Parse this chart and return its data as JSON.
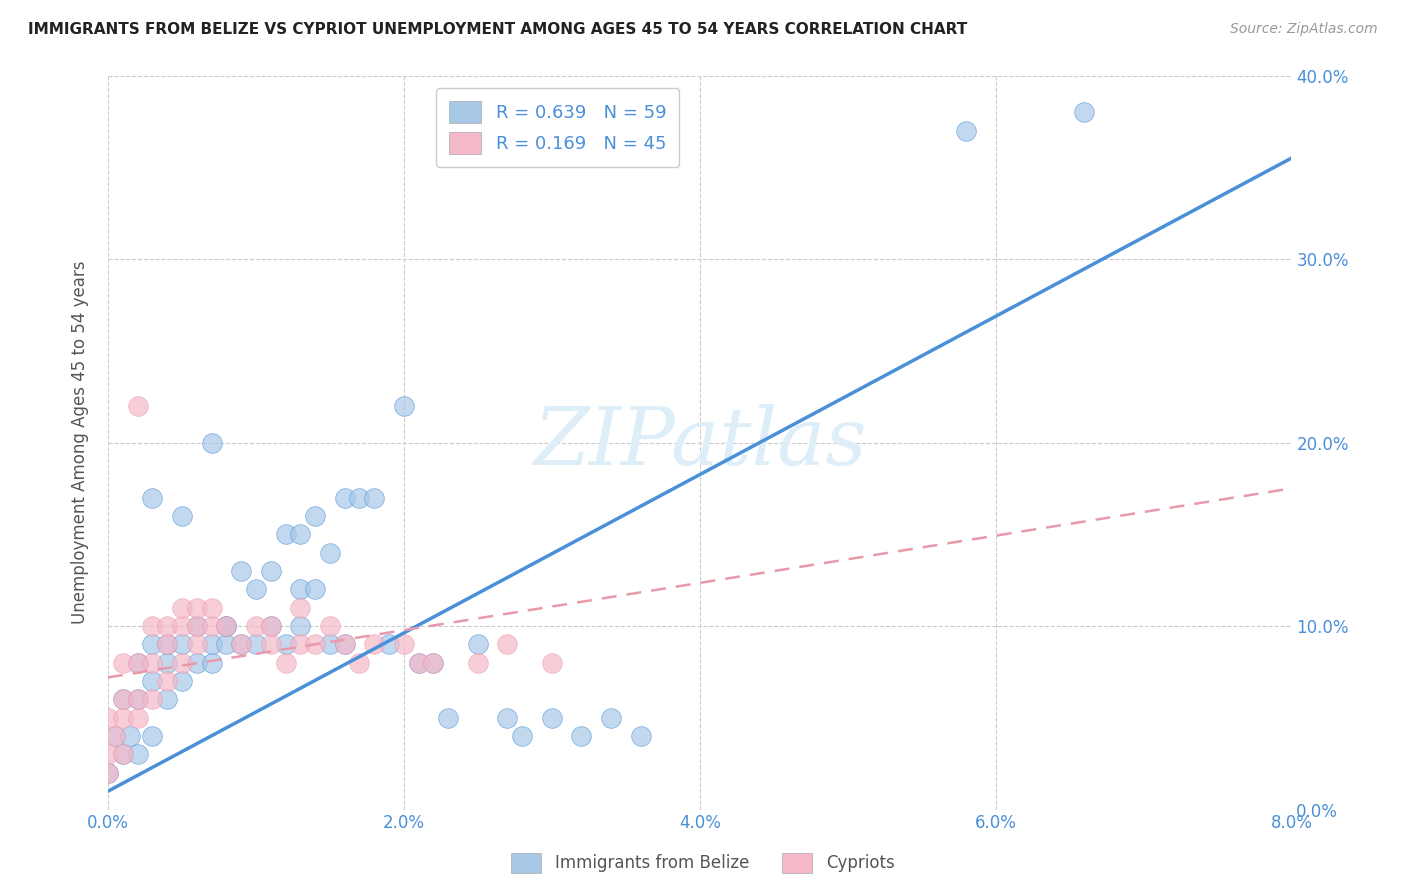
{
  "title": "IMMIGRANTS FROM BELIZE VS CYPRIOT UNEMPLOYMENT AMONG AGES 45 TO 54 YEARS CORRELATION CHART",
  "source": "Source: ZipAtlas.com",
  "xlabel_ticks": [
    "0.0%",
    "2.0%",
    "4.0%",
    "6.0%",
    "8.0%"
  ],
  "ylabel_ticks_right": [
    "40.0%",
    "30.0%",
    "20.0%",
    "10.0%",
    "0.0%"
  ],
  "ylabel": "Unemployment Among Ages 45 to 54 years",
  "legend_label1": "Immigrants from Belize",
  "legend_label2": "Cypriots",
  "R1": 0.639,
  "N1": 59,
  "R2": 0.169,
  "N2": 45,
  "color_blue": "#a8c8e8",
  "color_pink": "#f4b8c8",
  "color_blue_text": "#4a90d9",
  "trendline1_color": "#4a90d9",
  "trendline2_color": "#e89aaa",
  "watermark": "ZIPatlas",
  "watermark_color": "#ddeef8",
  "background": "#ffffff",
  "grid_color": "#cccccc",
  "xlim": [
    0.0,
    0.08
  ],
  "ylim": [
    0.0,
    0.4
  ],
  "belize_x": [
    0.0,
    0.0005,
    0.001,
    0.001,
    0.0015,
    0.002,
    0.002,
    0.002,
    0.003,
    0.003,
    0.003,
    0.003,
    0.004,
    0.004,
    0.004,
    0.005,
    0.005,
    0.005,
    0.006,
    0.006,
    0.007,
    0.007,
    0.007,
    0.008,
    0.008,
    0.008,
    0.009,
    0.009,
    0.01,
    0.01,
    0.011,
    0.011,
    0.012,
    0.012,
    0.013,
    0.013,
    0.013,
    0.014,
    0.014,
    0.015,
    0.015,
    0.016,
    0.016,
    0.017,
    0.018,
    0.019,
    0.02,
    0.021,
    0.022,
    0.023,
    0.025,
    0.027,
    0.028,
    0.03,
    0.032,
    0.034,
    0.036,
    0.058,
    0.066
  ],
  "belize_y": [
    0.02,
    0.04,
    0.03,
    0.06,
    0.04,
    0.03,
    0.06,
    0.08,
    0.04,
    0.07,
    0.09,
    0.17,
    0.06,
    0.08,
    0.09,
    0.07,
    0.09,
    0.16,
    0.08,
    0.1,
    0.08,
    0.09,
    0.2,
    0.09,
    0.1,
    0.1,
    0.09,
    0.13,
    0.09,
    0.12,
    0.1,
    0.13,
    0.09,
    0.15,
    0.1,
    0.12,
    0.15,
    0.12,
    0.16,
    0.09,
    0.14,
    0.09,
    0.17,
    0.17,
    0.17,
    0.09,
    0.22,
    0.08,
    0.08,
    0.05,
    0.09,
    0.05,
    0.04,
    0.05,
    0.04,
    0.05,
    0.04,
    0.37,
    0.38
  ],
  "cypriot_x": [
    0.0,
    0.0,
    0.0,
    0.0005,
    0.001,
    0.001,
    0.001,
    0.001,
    0.002,
    0.002,
    0.002,
    0.002,
    0.003,
    0.003,
    0.003,
    0.004,
    0.004,
    0.004,
    0.005,
    0.005,
    0.005,
    0.006,
    0.006,
    0.006,
    0.007,
    0.007,
    0.008,
    0.009,
    0.01,
    0.011,
    0.011,
    0.012,
    0.013,
    0.013,
    0.014,
    0.015,
    0.016,
    0.017,
    0.018,
    0.02,
    0.021,
    0.022,
    0.025,
    0.027,
    0.03
  ],
  "cypriot_y": [
    0.02,
    0.03,
    0.05,
    0.04,
    0.03,
    0.05,
    0.06,
    0.08,
    0.05,
    0.06,
    0.08,
    0.22,
    0.06,
    0.08,
    0.1,
    0.07,
    0.09,
    0.1,
    0.08,
    0.1,
    0.11,
    0.09,
    0.1,
    0.11,
    0.1,
    0.11,
    0.1,
    0.09,
    0.1,
    0.09,
    0.1,
    0.08,
    0.09,
    0.11,
    0.09,
    0.1,
    0.09,
    0.08,
    0.09,
    0.09,
    0.08,
    0.08,
    0.08,
    0.09,
    0.08
  ],
  "trendline1_x0": 0.0,
  "trendline1_y0": 0.01,
  "trendline1_x1": 0.08,
  "trendline1_y1": 0.355,
  "trendline2_x0": 0.0,
  "trendline2_y0": 0.072,
  "trendline2_x1": 0.08,
  "trendline2_y1": 0.175
}
